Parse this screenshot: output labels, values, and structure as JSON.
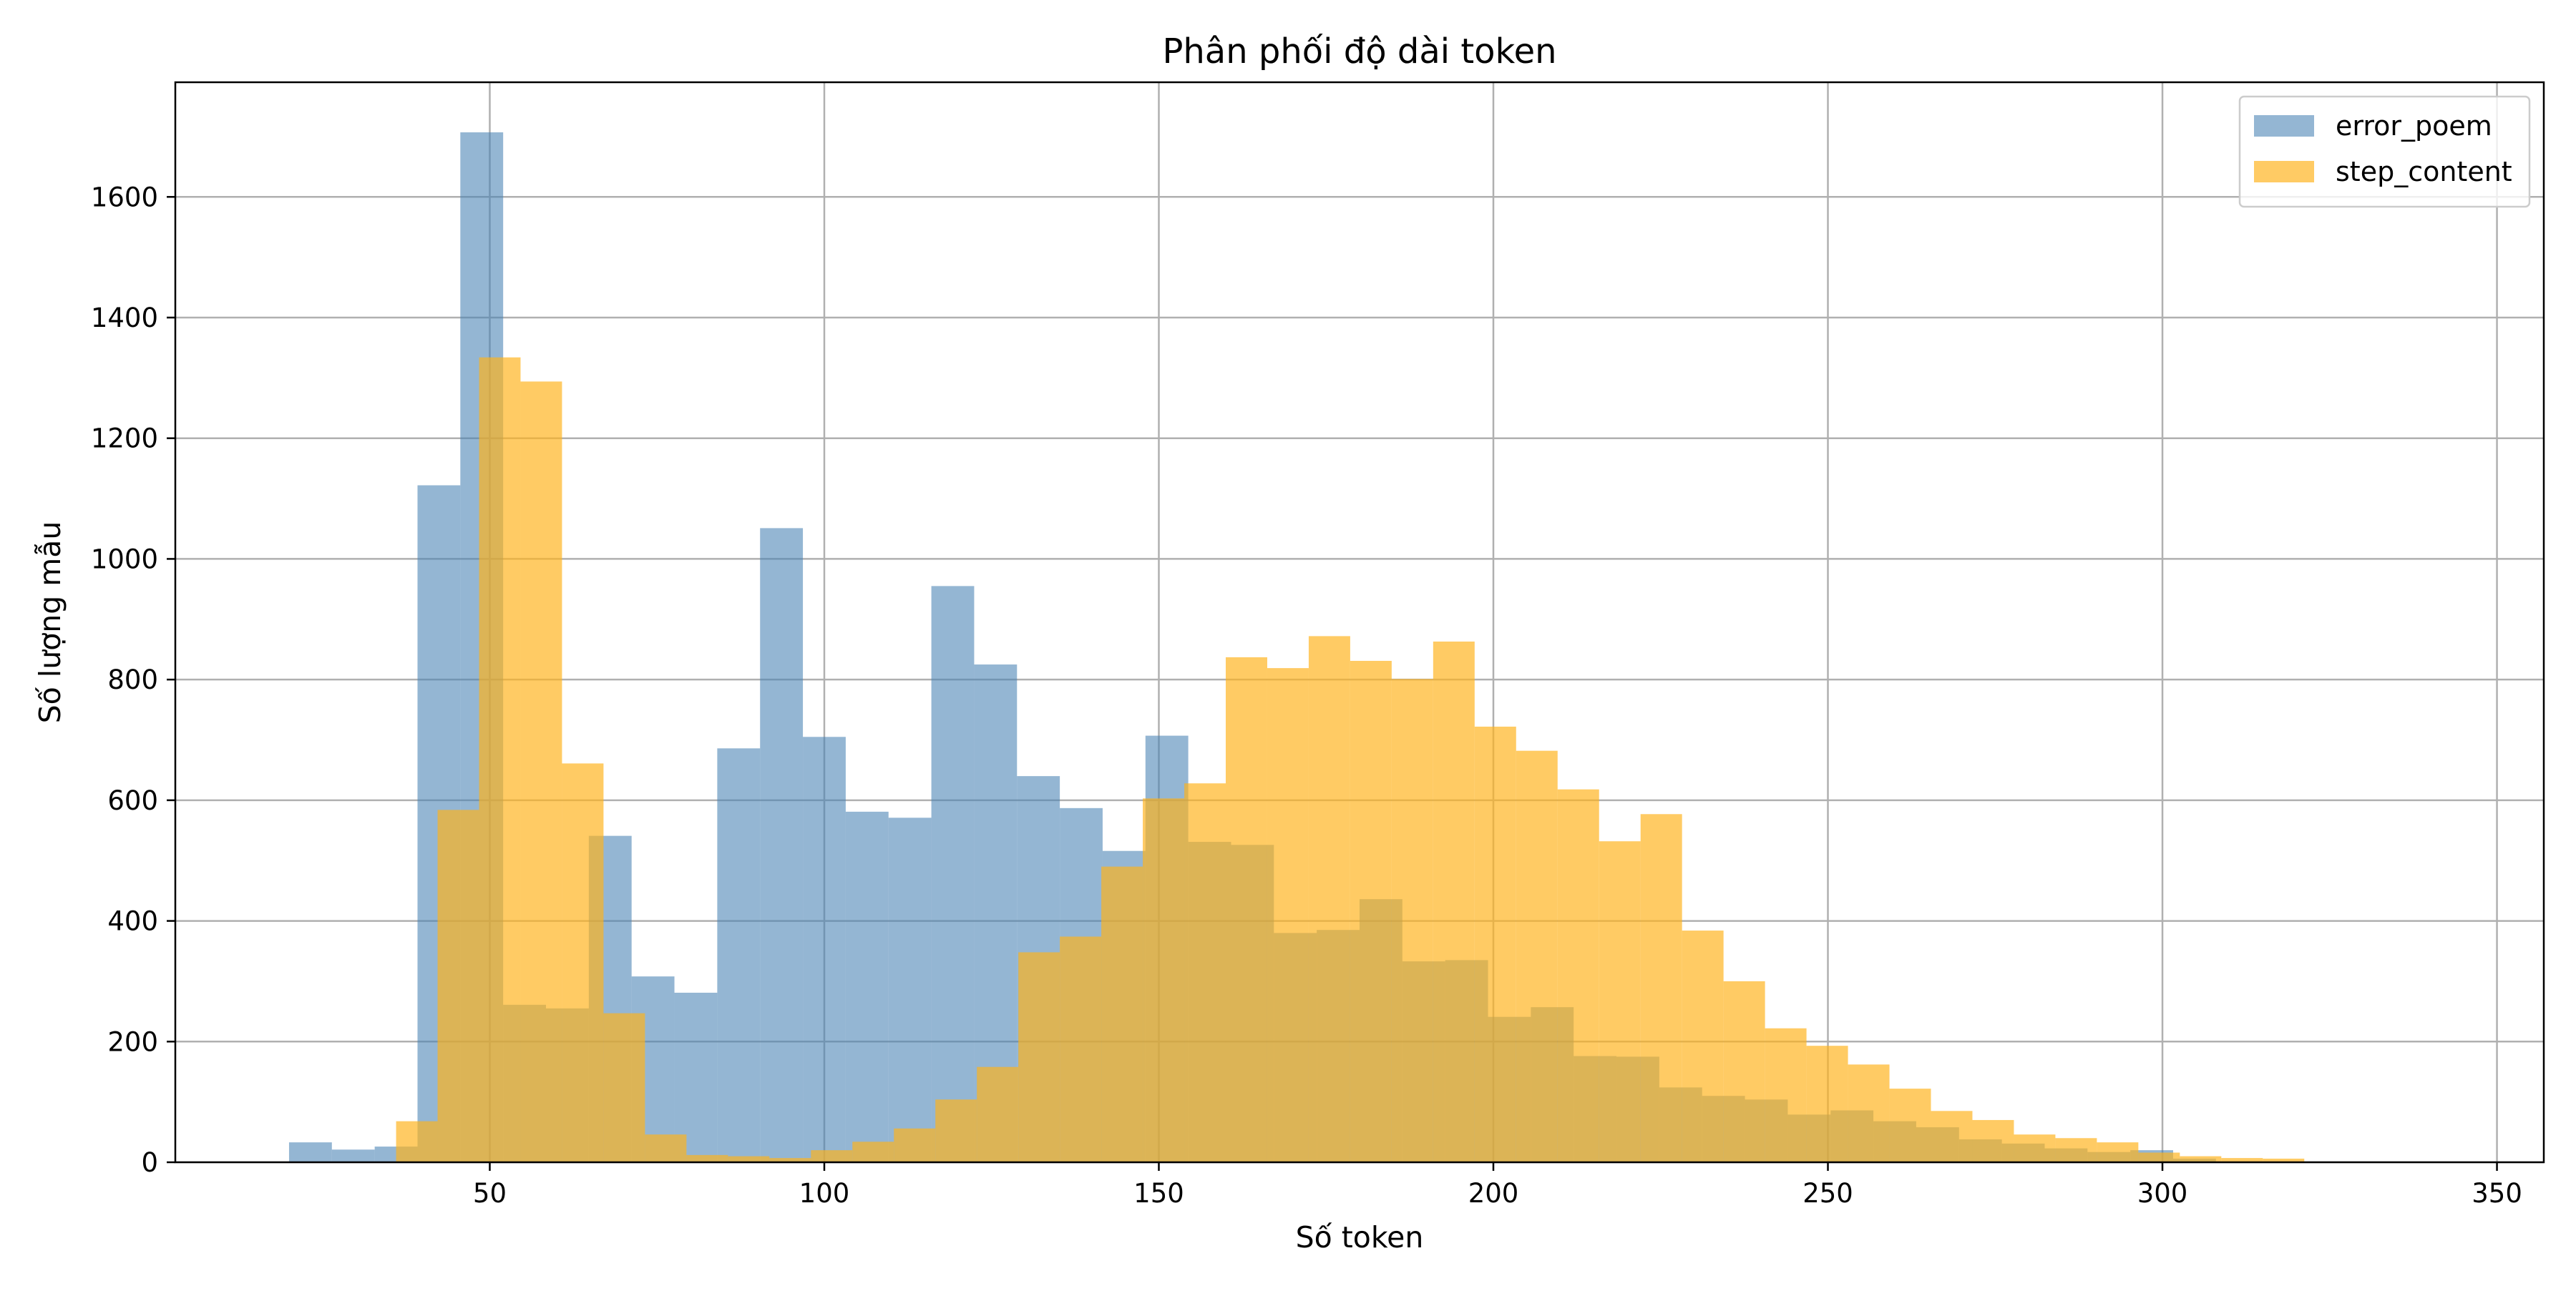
{
  "chart_data": {
    "type": "bar",
    "title": "Phân phối độ dài token",
    "xlabel": "Số token",
    "ylabel": "Số lượng mẫu",
    "xlim": [
      3,
      357
    ],
    "ylim": [
      0,
      1790
    ],
    "xticks": [
      50,
      100,
      150,
      200,
      250,
      300,
      350
    ],
    "yticks": [
      0,
      200,
      400,
      600,
      800,
      1000,
      1200,
      1400,
      1600
    ],
    "grid": true,
    "legend_position": "top-right",
    "series": [
      {
        "name": "error_poem",
        "color": "#4682b4",
        "opacity": 0.58,
        "bins": [
          [
            20,
            26.4,
            33
          ],
          [
            26.4,
            32.8,
            21
          ],
          [
            32.8,
            39.2,
            26
          ],
          [
            39.2,
            45.6,
            1122
          ],
          [
            45.6,
            52.0,
            1707
          ],
          [
            52.0,
            58.4,
            261
          ],
          [
            58.4,
            64.8,
            255
          ],
          [
            64.8,
            71.2,
            541
          ],
          [
            71.2,
            77.6,
            308
          ],
          [
            77.6,
            84.0,
            281
          ],
          [
            84.0,
            90.4,
            686
          ],
          [
            90.4,
            96.8,
            1051
          ],
          [
            96.8,
            103.2,
            705
          ],
          [
            103.2,
            109.6,
            581
          ],
          [
            109.6,
            116.0,
            571
          ],
          [
            116.0,
            122.4,
            955
          ],
          [
            122.4,
            128.8,
            825
          ],
          [
            128.8,
            135.2,
            640
          ],
          [
            135.2,
            141.6,
            587
          ],
          [
            141.6,
            148.0,
            516
          ],
          [
            148.0,
            154.4,
            707
          ],
          [
            154.4,
            160.8,
            531
          ],
          [
            160.8,
            167.2,
            526
          ],
          [
            167.2,
            173.6,
            380
          ],
          [
            173.6,
            180.0,
            385
          ],
          [
            180.0,
            186.4,
            436
          ],
          [
            186.4,
            192.8,
            333
          ],
          [
            192.8,
            199.2,
            335
          ],
          [
            199.2,
            205.6,
            241
          ],
          [
            205.6,
            212.0,
            257
          ],
          [
            212.0,
            218.4,
            176
          ],
          [
            218.4,
            224.8,
            175
          ],
          [
            224.8,
            231.2,
            124
          ],
          [
            231.2,
            237.6,
            110
          ],
          [
            237.6,
            244.0,
            104
          ],
          [
            244.0,
            250.4,
            79
          ],
          [
            250.4,
            256.8,
            86
          ],
          [
            256.8,
            263.2,
            68
          ],
          [
            263.2,
            269.6,
            58
          ],
          [
            269.6,
            276.0,
            38
          ],
          [
            276.0,
            282.4,
            31
          ],
          [
            282.4,
            288.8,
            23
          ],
          [
            288.8,
            295.2,
            17
          ],
          [
            295.2,
            301.6,
            20
          ],
          [
            301.6,
            308.0,
            6
          ]
        ]
      },
      {
        "name": "step_content",
        "color": "#ffb31a",
        "opacity": 0.68,
        "bins": [
          [
            36,
            42.2,
            68
          ],
          [
            42.2,
            48.4,
            584
          ],
          [
            48.4,
            54.6,
            1334
          ],
          [
            54.6,
            60.8,
            1294
          ],
          [
            60.8,
            67.0,
            661
          ],
          [
            67.0,
            73.2,
            247
          ],
          [
            73.2,
            79.4,
            46
          ],
          [
            79.4,
            85.6,
            12
          ],
          [
            85.6,
            91.8,
            10
          ],
          [
            91.8,
            98.0,
            7
          ],
          [
            98.0,
            104.2,
            20
          ],
          [
            104.2,
            110.4,
            34
          ],
          [
            110.4,
            116.6,
            56
          ],
          [
            116.6,
            122.8,
            104
          ],
          [
            122.8,
            129.0,
            158
          ],
          [
            129.0,
            135.2,
            348
          ],
          [
            135.2,
            141.4,
            374
          ],
          [
            141.4,
            147.6,
            490
          ],
          [
            147.6,
            153.8,
            603
          ],
          [
            153.8,
            160.0,
            628
          ],
          [
            160.0,
            166.2,
            837
          ],
          [
            166.2,
            172.4,
            819
          ],
          [
            172.4,
            178.6,
            872
          ],
          [
            178.6,
            184.8,
            831
          ],
          [
            184.8,
            191.0,
            801
          ],
          [
            191.0,
            197.2,
            863
          ],
          [
            197.2,
            203.4,
            722
          ],
          [
            203.4,
            209.6,
            682
          ],
          [
            209.6,
            215.8,
            618
          ],
          [
            215.8,
            222.0,
            532
          ],
          [
            222.0,
            228.2,
            577
          ],
          [
            228.2,
            234.4,
            384
          ],
          [
            234.4,
            240.6,
            300
          ],
          [
            240.6,
            246.8,
            222
          ],
          [
            246.8,
            253.0,
            193
          ],
          [
            253.0,
            259.2,
            162
          ],
          [
            259.2,
            265.4,
            122
          ],
          [
            265.4,
            271.6,
            85
          ],
          [
            271.6,
            277.8,
            70
          ],
          [
            277.8,
            284.0,
            46
          ],
          [
            284.0,
            290.2,
            40
          ],
          [
            290.2,
            296.4,
            33
          ],
          [
            296.4,
            302.6,
            16
          ],
          [
            302.6,
            308.8,
            10
          ],
          [
            308.8,
            315.0,
            7
          ],
          [
            315.0,
            321.2,
            6
          ]
        ]
      }
    ]
  }
}
